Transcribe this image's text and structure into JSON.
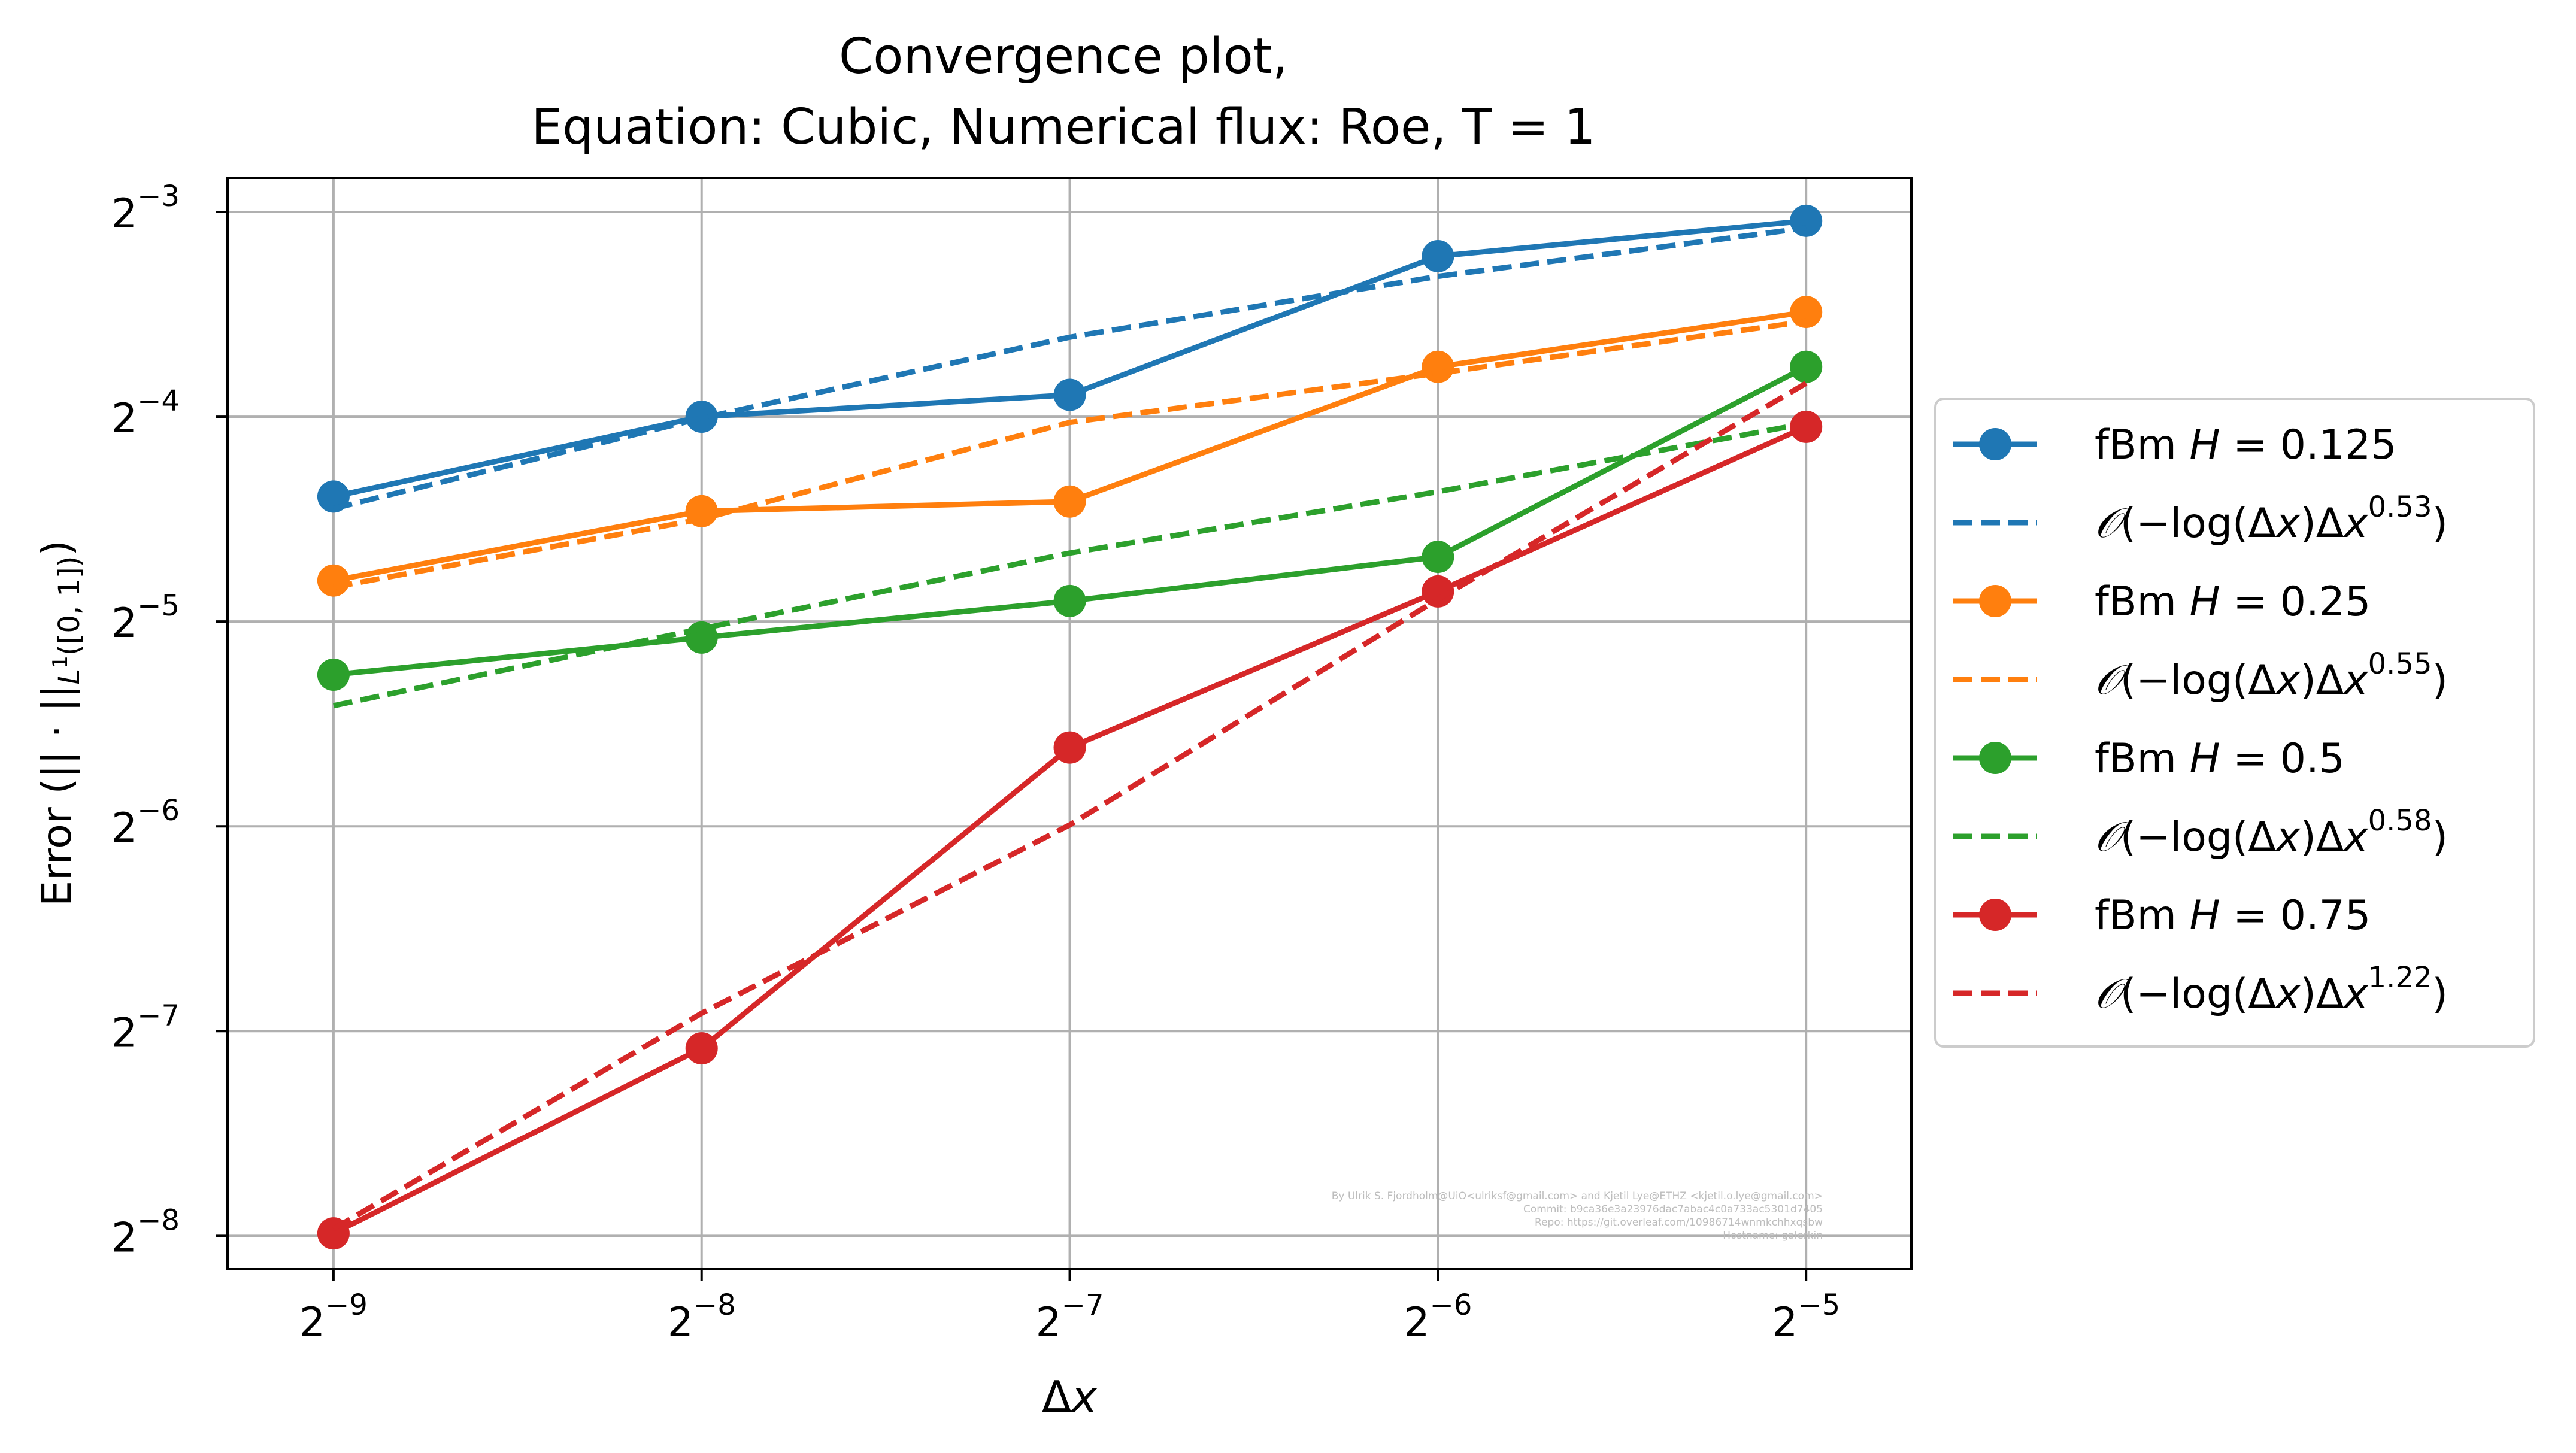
{
  "chart_data": {
    "type": "line",
    "title": [
      "Convergence plot,",
      "Equation: Cubic, Numerical flux: Roe, T = 1"
    ],
    "xlabel": "Δx",
    "ylabel": "Error (|| · ||L¹([0, 1]))",
    "xscale": "log2",
    "yscale": "log2",
    "x": [
      0.001953125,
      0.00390625,
      0.0078125,
      0.015625,
      0.03125
    ],
    "xticks": [
      {
        "label": "2",
        "exp": "−9",
        "value": 0.001953125
      },
      {
        "label": "2",
        "exp": "−8",
        "value": 0.00390625
      },
      {
        "label": "2",
        "exp": "−7",
        "value": 0.0078125
      },
      {
        "label": "2",
        "exp": "−6",
        "value": 0.015625
      },
      {
        "label": "2",
        "exp": "−5",
        "value": 0.03125
      }
    ],
    "yticks": [
      {
        "label": "2",
        "exp": "−3",
        "value": 0.125
      },
      {
        "label": "2",
        "exp": "−4",
        "value": 0.0625
      },
      {
        "label": "2",
        "exp": "−5",
        "value": 0.03125
      },
      {
        "label": "2",
        "exp": "−6",
        "value": 0.015625
      },
      {
        "label": "2",
        "exp": "−7",
        "value": 0.0078125
      },
      {
        "label": "2",
        "exp": "−8",
        "value": 0.00390625
      }
    ],
    "xlim": [
      0.0016,
      0.0381
    ],
    "ylim": [
      0.00349,
      0.1403
    ],
    "grid": true,
    "legend_position": "right, outside axes",
    "series": [
      {
        "name": "fBm H = 0.125",
        "legend": {
          "pre": "fBm ",
          "var": "H",
          "post": " = 0.125"
        },
        "style": "solid-marker",
        "color": "#1f77b4",
        "values": [
          0.0477,
          0.0625,
          0.0673,
          0.1076,
          0.1213
        ]
      },
      {
        "name": "𝒪(−log(Δx)Δx^0.53)",
        "legend": {
          "fit": true,
          "exp": "0.53"
        },
        "style": "dashed",
        "color": "#1f77b4",
        "values": [
          0.0458,
          0.0622,
          0.0818,
          0.1005,
          0.1184
        ]
      },
      {
        "name": "fBm H = 0.25",
        "legend": {
          "pre": "fBm ",
          "var": "H",
          "post": " = 0.25"
        },
        "style": "solid-marker",
        "color": "#ff7f0e",
        "values": [
          0.0359,
          0.0454,
          0.0469,
          0.074,
          0.0891
        ]
      },
      {
        "name": "𝒪(−log(Δx)Δx^0.55)",
        "legend": {
          "fit": true,
          "exp": "0.55"
        },
        "style": "dashed",
        "color": "#ff7f0e",
        "values": [
          0.0351,
          0.0442,
          0.0613,
          0.0724,
          0.0863
        ]
      },
      {
        "name": "fBm H = 0.5",
        "legend": {
          "pre": "fBm ",
          "var": "H",
          "post": " = 0.5"
        },
        "style": "solid-marker",
        "color": "#2ca02c",
        "values": [
          0.0261,
          0.0296,
          0.0335,
          0.0389,
          0.074
        ]
      },
      {
        "name": "𝒪(−log(Δx)Δx^0.58)",
        "legend": {
          "fit": true,
          "exp": "0.58"
        },
        "style": "dashed",
        "color": "#2ca02c",
        "values": [
          0.0235,
          0.0305,
          0.0394,
          0.0485,
          0.0611
        ]
      },
      {
        "name": "fBm H = 0.75",
        "legend": {
          "pre": "fBm ",
          "var": "H",
          "post": " = 0.75"
        },
        "style": "solid-marker",
        "color": "#d62728",
        "values": [
          0.00394,
          0.00737,
          0.0204,
          0.0346,
          0.0604
        ]
      },
      {
        "name": "𝒪(−log(Δx)Δx^1.22)",
        "legend": {
          "fit": true,
          "exp": "1.22"
        },
        "style": "dashed",
        "color": "#d62728",
        "values": [
          0.004,
          0.0083,
          0.0157,
          0.0337,
          0.07
        ]
      }
    ],
    "watermark": [
      "By Ulrik S. Fjordholm@UiO<ulriksf@gmail.com> and Kjetil Lye@ETHZ <kjetil.o.lye@gmail.com>",
      "Commit: b9ca36e3a23976dac7abac4c0a733ac5301d7405",
      "Repo: https://git.overleaf.com/10986714wnmkchhxqsbw",
      "Hostname: galerkin"
    ]
  }
}
